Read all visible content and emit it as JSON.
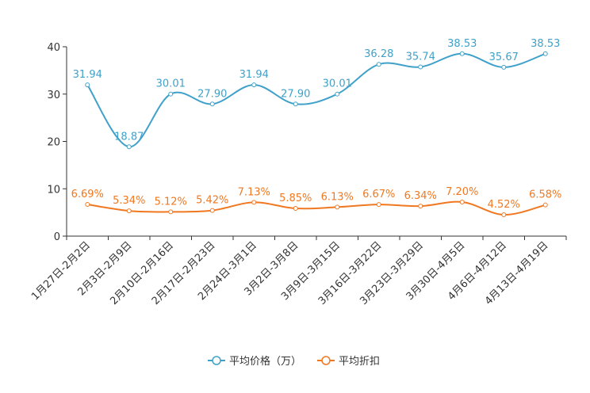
{
  "chart_data": {
    "type": "line",
    "categories": [
      "1月27日-2月2日",
      "2月3日-2月9日",
      "2月10日-2月16日",
      "2月17日-2月23日",
      "2月24日-3月1日",
      "3月2日-3月8日",
      "3月9日-3月15日",
      "3月16日-3月22日",
      "3月23日-3月29日",
      "3月30日-4月5日",
      "4月6日-4月12日",
      "4月13日-4月19日"
    ],
    "ylim": [
      0,
      40
    ],
    "yticks": [
      0,
      10,
      20,
      30,
      40
    ],
    "grid": false,
    "legend_position": "bottom-center",
    "series": [
      {
        "name": "平均价格（万）",
        "color": "#3fa1c9",
        "values": [
          31.94,
          18.87,
          30.01,
          27.9,
          31.94,
          27.9,
          30.01,
          36.28,
          35.74,
          38.53,
          35.67,
          38.53
        ],
        "labels": [
          "31.94",
          "18.87",
          "30.01",
          "27.90",
          "31.94",
          "27.90",
          "30.01",
          "36.28",
          "35.74",
          "38.53",
          "35.67",
          "38.53"
        ]
      },
      {
        "name": "平均折扣",
        "color": "#f07820",
        "values": [
          6.69,
          5.34,
          5.12,
          5.42,
          7.13,
          5.85,
          6.13,
          6.67,
          6.34,
          7.2,
          4.52,
          6.58
        ],
        "labels": [
          "6.69%",
          "5.34%",
          "5.12%",
          "5.42%",
          "7.13%",
          "5.85%",
          "6.13%",
          "6.67%",
          "6.34%",
          "7.20%",
          "4.52%",
          "6.58%"
        ]
      }
    ]
  }
}
